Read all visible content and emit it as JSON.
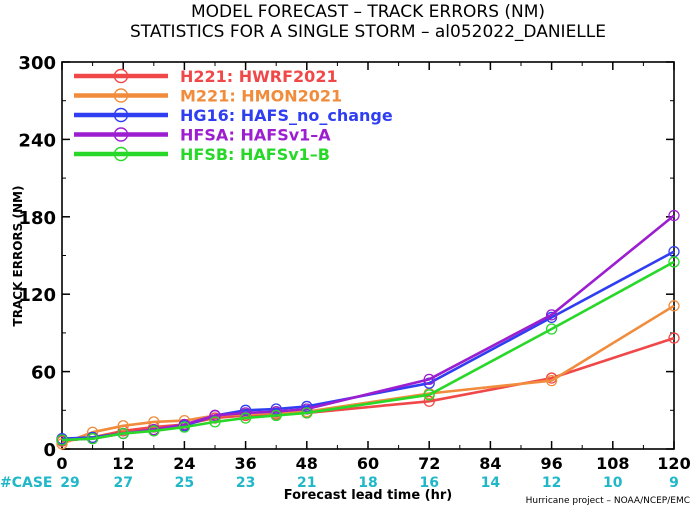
{
  "chart_data": {
    "type": "line",
    "title": "MODEL FORECAST – TRACK ERRORS (NM)",
    "subtitle": "STATISTICS FOR A SINGLE STORM – al052022_DANIELLE",
    "xlabel": "Forecast lead time (hr)",
    "ylabel": "TRACK ERRORS (NM)",
    "xlim": [
      0,
      120
    ],
    "ylim": [
      0,
      300
    ],
    "x_ticks": [
      "0",
      "12",
      "24",
      "36",
      "48",
      "60",
      "72",
      "84",
      "96",
      "108",
      "120"
    ],
    "y_ticks": [
      "0",
      "60",
      "120",
      "180",
      "240",
      "300"
    ],
    "grid": false,
    "legend_position": "top-left",
    "case_label": "#CASE",
    "case_color": "#20b8c8",
    "cases": [
      {
        "x": 0,
        "n": "29"
      },
      {
        "x": 12,
        "n": "27"
      },
      {
        "x": 24,
        "n": "25"
      },
      {
        "x": 36,
        "n": "23"
      },
      {
        "x": 48,
        "n": "21"
      },
      {
        "x": 60,
        "n": "18"
      },
      {
        "x": 72,
        "n": "16"
      },
      {
        "x": 84,
        "n": "14"
      },
      {
        "x": 96,
        "n": "12"
      },
      {
        "x": 108,
        "n": "10"
      },
      {
        "x": 120,
        "n": "9"
      }
    ],
    "series": [
      {
        "name": "H221:  HWRF2021",
        "color": "#f04848",
        "x": [
          0,
          6,
          12,
          18,
          24,
          30,
          36,
          42,
          48,
          72,
          96,
          120
        ],
        "y": [
          6,
          9,
          14,
          17,
          19,
          24,
          26,
          27,
          28,
          37,
          55,
          86
        ]
      },
      {
        "name": "M221:  HMON2021",
        "color": "#f08c3c",
        "x": [
          0,
          6,
          12,
          18,
          24,
          30,
          36,
          42,
          48,
          72,
          96,
          120
        ],
        "y": [
          4,
          13,
          18,
          21,
          22,
          26,
          27,
          28,
          29,
          43,
          53,
          111
        ]
      },
      {
        "name": "HG16:  HAFS_no_change",
        "color": "#2f3ef0",
        "x": [
          0,
          6,
          12,
          18,
          24,
          30,
          36,
          42,
          48,
          72,
          96,
          120
        ],
        "y": [
          8,
          9,
          12,
          15,
          18,
          26,
          30,
          31,
          33,
          51,
          102,
          153
        ]
      },
      {
        "name": "HFSA:  HAFSv1–A",
        "color": "#9c1ed0",
        "x": [
          0,
          6,
          12,
          18,
          24,
          30,
          36,
          42,
          48,
          72,
          96,
          120
        ],
        "y": [
          7,
          8,
          12,
          15,
          19,
          26,
          28,
          29,
          31,
          54,
          104,
          181
        ]
      },
      {
        "name": "HFSB:  HAFSv1–B",
        "color": "#28d828",
        "x": [
          0,
          6,
          12,
          18,
          24,
          30,
          36,
          42,
          48,
          72,
          96,
          120
        ],
        "y": [
          7,
          8,
          12,
          14,
          17,
          21,
          24,
          26,
          28,
          42,
          93,
          145
        ]
      }
    ],
    "footnote": "Hurricane project – NOAA/NCEP/EMC"
  }
}
